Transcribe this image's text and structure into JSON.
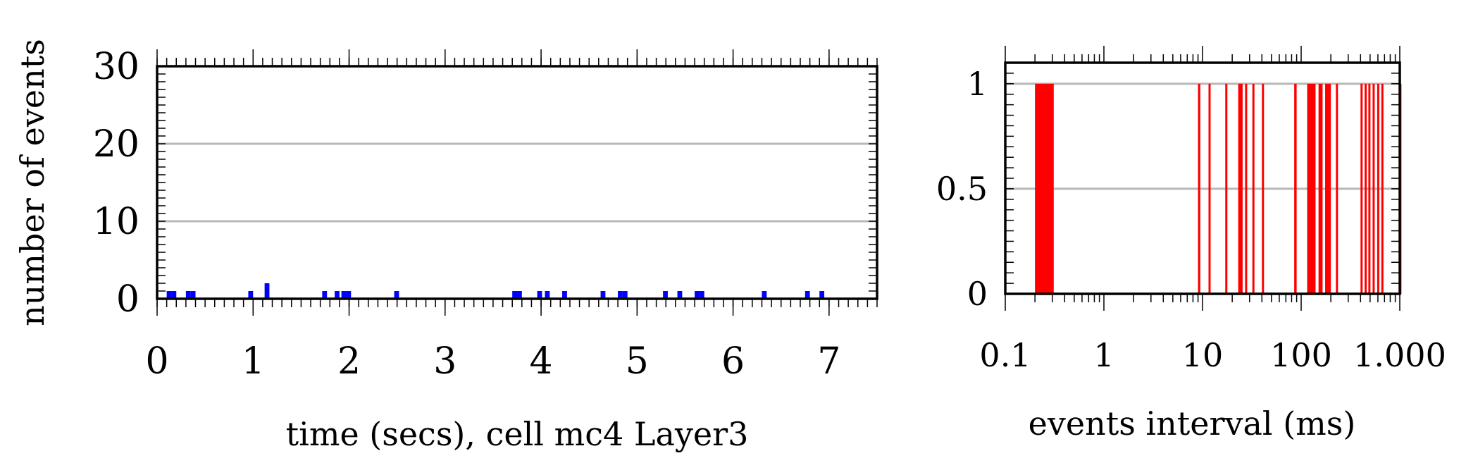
{
  "chart_data": [
    {
      "type": "bar",
      "title": "",
      "xlabel": "time (secs), cell mc4 Layer3",
      "ylabel": "number of events",
      "xlim": [
        0,
        7.5
      ],
      "ylim": [
        0,
        30
      ],
      "xticks": [
        "0",
        "1",
        "2",
        "3",
        "4",
        "5",
        "6",
        "7"
      ],
      "yticks": [
        "0",
        "10",
        "20",
        "30"
      ],
      "grid": "horizontal",
      "color": "#0000ff",
      "bin_width": 0.05,
      "x": [
        0.1,
        0.15,
        0.3,
        0.35,
        0.95,
        1.12,
        1.72,
        1.85,
        1.92,
        1.97,
        2.47,
        3.7,
        3.75,
        3.96,
        4.04,
        4.22,
        4.62,
        4.8,
        4.85,
        5.27,
        5.42,
        5.6,
        5.65,
        6.3,
        6.75,
        6.9
      ],
      "values": [
        1,
        1,
        1,
        1,
        1,
        2,
        1,
        1,
        1,
        1,
        1,
        1,
        1,
        1,
        1,
        1,
        1,
        1,
        1,
        1,
        1,
        1,
        1,
        1,
        1,
        1
      ]
    },
    {
      "type": "bar",
      "title": "",
      "xlabel": "events interval (ms)",
      "ylabel": "",
      "x_scale": "log",
      "xlim": [
        0.1,
        1000
      ],
      "ylim": [
        0,
        1.1
      ],
      "xticks": [
        "0.1",
        "1",
        "10",
        "100",
        "1.000"
      ],
      "yticks": [
        "0",
        "0.5",
        "1"
      ],
      "grid": "horizontal",
      "color": "#ff0000",
      "bars_ms": [
        [
          0.2,
          0.31
        ],
        [
          9.0,
          9.5
        ],
        [
          11.5,
          12.0
        ],
        [
          17.0,
          17.6
        ],
        [
          23.0,
          25.5
        ],
        [
          27.0,
          27.8
        ],
        [
          32.0,
          33.0
        ],
        [
          40.0,
          41.0
        ],
        [
          85.0,
          90.0
        ],
        [
          115.0,
          140.0
        ],
        [
          150.0,
          165.0
        ],
        [
          175.0,
          200.0
        ],
        [
          225.0,
          235.0
        ],
        [
          400.0,
          420.0
        ],
        [
          440.0,
          460.0
        ],
        [
          480.0,
          500.0
        ],
        [
          530.0,
          550.0
        ],
        [
          590.0,
          610.0
        ],
        [
          650.0,
          680.0
        ],
        [
          990.0,
          1000.0
        ]
      ],
      "values": [
        1,
        1,
        1,
        1,
        1,
        1,
        1,
        1,
        1,
        1,
        1,
        1,
        1,
        1,
        1,
        1,
        1,
        1,
        1,
        1
      ]
    }
  ]
}
